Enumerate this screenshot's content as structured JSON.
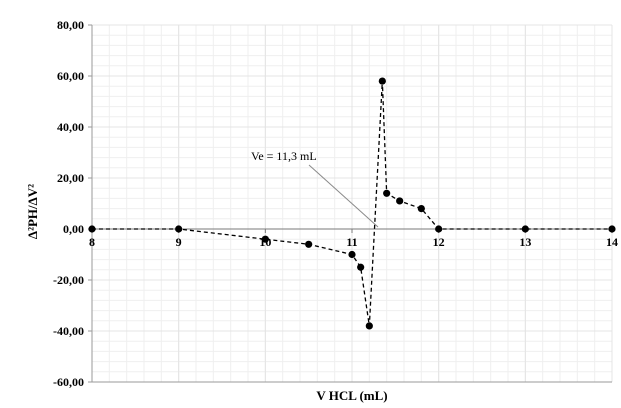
{
  "chart_data": {
    "type": "scatter",
    "title": "",
    "xlabel": "V HCL (mL)",
    "ylabel": "Δ²PH/ΔV²",
    "xlim": [
      8,
      14
    ],
    "ylim": [
      -60,
      80
    ],
    "x_ticks": [
      "8",
      "9",
      "10",
      "11",
      "12",
      "13",
      "14"
    ],
    "y_ticks": [
      "80,00",
      "60,00",
      "40,00",
      "20,00",
      "0,00",
      "-20,00",
      "-40,00",
      "-60,00"
    ],
    "grid": true,
    "line_style": "dashed",
    "marker": "circle",
    "colors": {
      "series": "#000000",
      "grid": "#e4e4e4",
      "axis": "#9a9a9a"
    },
    "series": [
      {
        "x": [
          8,
          9,
          10,
          10.5,
          11,
          11.1,
          11.2,
          11.35,
          11.4,
          11.55,
          11.8,
          12,
          13,
          14
        ],
        "y": [
          0,
          0,
          -4,
          -6,
          -10,
          -15,
          -38,
          58,
          14,
          11,
          8,
          0,
          0,
          0
        ]
      }
    ],
    "annotations": [
      {
        "text": "Ve = 11,3 mL",
        "x": 11.3,
        "y": 0
      }
    ]
  }
}
